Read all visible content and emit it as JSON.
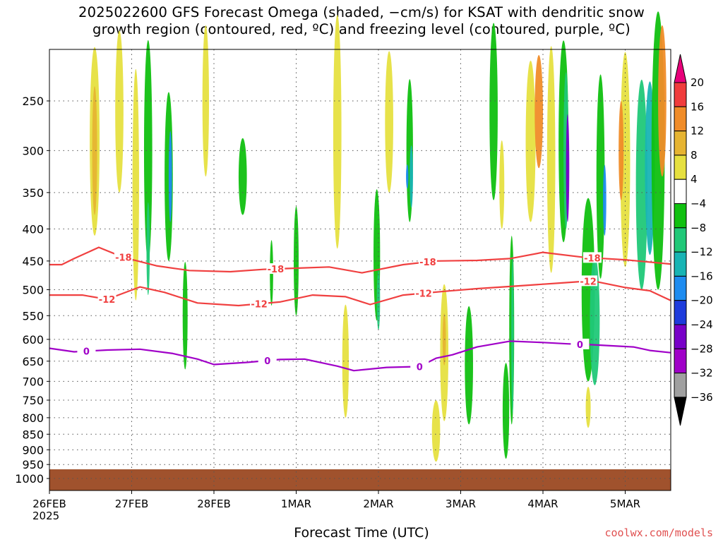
{
  "title": {
    "line1": "2025022600 GFS Forecast Omega (shaded, −cm/s) for KSAT with dendritic snow",
    "line2": "growth region (contoured, red, ºC) and freezing level (contoured, purple, ºC)"
  },
  "x_axis_title": "Forecast Time (UTC)",
  "x_year_label": "2025",
  "credit": "coolwx.com/models",
  "colors": {
    "grid": "#555555",
    "dgz_contour": "#f04040",
    "freezing_contour": "#a000c8",
    "ground": "#a0522d"
  },
  "chart_data": {
    "type": "heatmap",
    "x_ticks": [
      "26FEB",
      "27FEB",
      "28FEB",
      "1MAR",
      "2MAR",
      "3MAR",
      "4MAR",
      "5MAR"
    ],
    "y_ticks": [
      250,
      300,
      350,
      400,
      450,
      500,
      550,
      600,
      650,
      700,
      750,
      800,
      850,
      900,
      950,
      1000
    ],
    "x_range_days": [
      0,
      7.55
    ],
    "y_range_hpa": [
      200,
      1030
    ],
    "grid": true,
    "colorbar": {
      "labels": [
        "20",
        "16",
        "12",
        "8",
        "4",
        "−4",
        "−8",
        "−12",
        "−16",
        "−20",
        "−24",
        "−28",
        "−32",
        "−36"
      ],
      "colors": [
        "#e8007a",
        "#f03c3c",
        "#f08c28",
        "#e6b432",
        "#e6e040",
        "#ffffff",
        "#10c010",
        "#20c878",
        "#18b4b4",
        "#1e8cf0",
        "#1e3cdc",
        "#7800c8",
        "#a000c8",
        "#a0a0a0",
        "#000000"
      ]
    },
    "contours": [
      {
        "level": "-18",
        "color": "#f04040",
        "points": [
          [
            0,
            456
          ],
          [
            0.15,
            456
          ],
          [
            0.3,
            446
          ],
          [
            0.6,
            428
          ],
          [
            0.9,
            444
          ],
          [
            1.3,
            458
          ],
          [
            1.7,
            466
          ],
          [
            2.2,
            468
          ],
          [
            2.6,
            464
          ],
          [
            3.0,
            462
          ],
          [
            3.4,
            460
          ],
          [
            3.8,
            470
          ],
          [
            4.3,
            456
          ],
          [
            4.7,
            450
          ],
          [
            5.2,
            449
          ],
          [
            5.6,
            446
          ],
          [
            6.0,
            436
          ],
          [
            6.5,
            444
          ],
          [
            7.0,
            448
          ],
          [
            7.55,
            455
          ]
        ],
        "labels": [
          [
            0.9,
            "-18"
          ],
          [
            2.75,
            "-18"
          ],
          [
            4.6,
            "-18"
          ],
          [
            6.6,
            "-18"
          ]
        ]
      },
      {
        "level": "-12",
        "color": "#f04040",
        "points": [
          [
            0,
            510
          ],
          [
            0.4,
            510
          ],
          [
            0.7,
            518
          ],
          [
            1.1,
            495
          ],
          [
            1.4,
            505
          ],
          [
            1.8,
            525
          ],
          [
            2.3,
            530
          ],
          [
            2.8,
            523
          ],
          [
            3.2,
            510
          ],
          [
            3.6,
            513
          ],
          [
            3.9,
            528
          ],
          [
            4.3,
            510
          ],
          [
            4.8,
            503
          ],
          [
            5.2,
            498
          ],
          [
            5.7,
            493
          ],
          [
            6.2,
            488
          ],
          [
            6.6,
            484
          ],
          [
            7.0,
            496
          ],
          [
            7.3,
            502
          ],
          [
            7.55,
            520
          ]
        ],
        "labels": [
          [
            0.7,
            "-12"
          ],
          [
            2.55,
            "-12"
          ],
          [
            4.55,
            "-12"
          ],
          [
            6.55,
            "-12"
          ]
        ]
      },
      {
        "level": "0",
        "color": "#a000c8",
        "points": [
          [
            0,
            620
          ],
          [
            0.3,
            628
          ],
          [
            0.7,
            624
          ],
          [
            1.1,
            622
          ],
          [
            1.5,
            632
          ],
          [
            1.8,
            645
          ],
          [
            2.0,
            658
          ],
          [
            2.4,
            653
          ],
          [
            2.8,
            646
          ],
          [
            3.1,
            645
          ],
          [
            3.5,
            662
          ],
          [
            3.7,
            673
          ],
          [
            4.1,
            665
          ],
          [
            4.5,
            663
          ],
          [
            4.7,
            643
          ],
          [
            4.9,
            635
          ],
          [
            5.2,
            617
          ],
          [
            5.6,
            604
          ],
          [
            6.0,
            607
          ],
          [
            6.3,
            610
          ],
          [
            6.6,
            612
          ],
          [
            7.1,
            617
          ],
          [
            7.3,
            625
          ],
          [
            7.55,
            630
          ]
        ],
        "labels": [
          [
            0.45,
            "0"
          ],
          [
            2.65,
            "0"
          ],
          [
            4.5,
            "0"
          ],
          [
            6.45,
            "0"
          ]
        ]
      }
    ]
  }
}
